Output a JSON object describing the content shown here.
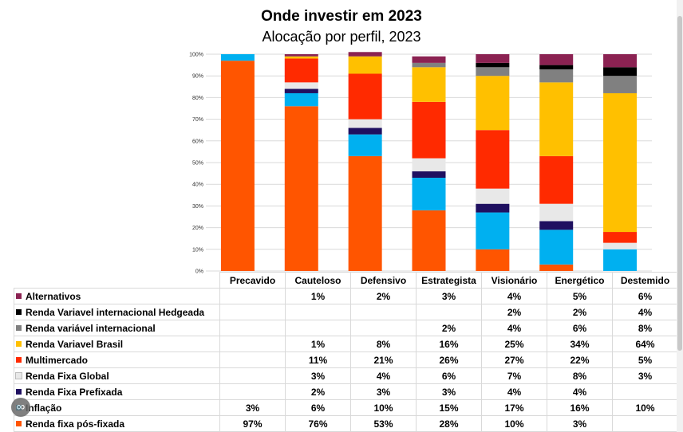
{
  "chart_data": {
    "type": "bar",
    "stacked": true,
    "title": "Onde investir em 2023",
    "subtitle": "Alocação por perfil, 2023",
    "ylim": [
      0,
      100
    ],
    "ytick_labels": [
      "0%",
      "10%",
      "20%",
      "30%",
      "40%",
      "50%",
      "60%",
      "70%",
      "80%",
      "90%",
      "100%"
    ],
    "grid": true,
    "legend": "data table below chart",
    "categories": [
      "Precavido",
      "Cauteloso",
      "Defensivo",
      "Estrategista",
      "Visionário",
      "Energético",
      "Destemido"
    ],
    "series": [
      {
        "name": "Renda fixa pós-fixada",
        "color": "#ff5500",
        "values": [
          97,
          76,
          53,
          28,
          10,
          3,
          0
        ]
      },
      {
        "name": "Inflação",
        "color": "#00b0f0",
        "values": [
          3,
          6,
          10,
          15,
          17,
          16,
          10
        ]
      },
      {
        "name": "Renda Fixa Prefixada",
        "color": "#1f1060",
        "values": [
          0,
          2,
          3,
          3,
          4,
          4,
          0
        ]
      },
      {
        "name": "Renda Fixa Global",
        "color": "#e8e8e8",
        "values": [
          0,
          3,
          4,
          6,
          7,
          8,
          3
        ]
      },
      {
        "name": "Multimercado",
        "color": "#ff2a00",
        "values": [
          0,
          11,
          21,
          26,
          27,
          22,
          5
        ]
      },
      {
        "name": "Renda Variavel Brasil",
        "color": "#ffc000",
        "values": [
          0,
          1,
          8,
          16,
          25,
          34,
          64
        ]
      },
      {
        "name": "Renda variável internacional",
        "color": "#808080",
        "values": [
          0,
          0,
          0,
          2,
          4,
          6,
          8
        ]
      },
      {
        "name": "Renda Variavel internacional Hedgeada",
        "color": "#000000",
        "values": [
          0,
          0,
          0,
          0,
          2,
          2,
          4
        ]
      },
      {
        "name": "Alternativos",
        "color": "#8b2252",
        "values": [
          0,
          1,
          2,
          3,
          4,
          5,
          6
        ]
      }
    ],
    "table_rows": [
      {
        "name": "Alternativos",
        "color": "#8b2252",
        "cells": [
          "",
          "1%",
          "2%",
          "3%",
          "4%",
          "5%",
          "6%"
        ]
      },
      {
        "name": "Renda Variavel internacional Hedgeada",
        "color": "#000000",
        "cells": [
          "",
          "",
          "",
          "",
          "2%",
          "2%",
          "4%"
        ]
      },
      {
        "name": "Renda variável internacional",
        "color": "#808080",
        "cells": [
          "",
          "",
          "",
          "2%",
          "4%",
          "6%",
          "8%"
        ]
      },
      {
        "name": "Renda Variavel Brasil",
        "color": "#ffc000",
        "cells": [
          "",
          "1%",
          "8%",
          "16%",
          "25%",
          "34%",
          "64%"
        ]
      },
      {
        "name": "Multimercado",
        "color": "#ff2a00",
        "cells": [
          "",
          "11%",
          "21%",
          "26%",
          "27%",
          "22%",
          "5%"
        ]
      },
      {
        "name": "Renda Fixa Global",
        "color": "#e8e8e8",
        "cells": [
          "",
          "3%",
          "4%",
          "6%",
          "7%",
          "8%",
          "3%"
        ]
      },
      {
        "name": "Renda Fixa Prefixada",
        "color": "#1f1060",
        "cells": [
          "",
          "2%",
          "3%",
          "3%",
          "4%",
          "4%",
          ""
        ]
      },
      {
        "name": "Inflação",
        "color": "#00b0f0",
        "cells": [
          "3%",
          "6%",
          "10%",
          "15%",
          "17%",
          "16%",
          "10%"
        ]
      },
      {
        "name": "Renda fixa pós-fixada",
        "color": "#ff5500",
        "cells": [
          "97%",
          "76%",
          "53%",
          "28%",
          "10%",
          "3%",
          ""
        ]
      }
    ]
  }
}
